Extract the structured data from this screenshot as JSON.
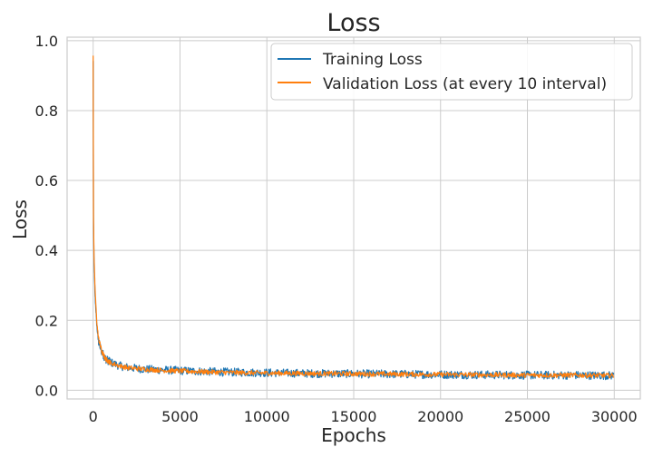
{
  "chart_data": {
    "type": "line",
    "title": "Loss",
    "xlabel": "Epochs",
    "ylabel": "Loss",
    "xlim": [
      -1500,
      31500
    ],
    "ylim": [
      -0.025,
      1.01
    ],
    "xticks": [
      0,
      5000,
      10000,
      15000,
      20000,
      25000,
      30000
    ],
    "yticks": [
      0.0,
      0.2,
      0.4,
      0.6,
      0.8,
      1.0
    ],
    "xtick_labels": [
      "0",
      "5000",
      "10000",
      "15000",
      "20000",
      "25000",
      "30000"
    ],
    "ytick_labels": [
      "0.0",
      "0.2",
      "0.4",
      "0.6",
      "0.8",
      "1.0"
    ],
    "grid": true,
    "legend_position": "top-right",
    "series": [
      {
        "name": "Training Loss",
        "color": "#1f77b4",
        "x": [
          0,
          20,
          50,
          100,
          200,
          300,
          500,
          700,
          1000,
          1500,
          2000,
          3000,
          4000,
          5000,
          7500,
          10000,
          12500,
          15000,
          17500,
          20000,
          22500,
          25000,
          27500,
          30000
        ],
        "y": [
          0.94,
          0.48,
          0.36,
          0.28,
          0.19,
          0.14,
          0.11,
          0.09,
          0.08,
          0.07,
          0.065,
          0.06,
          0.058,
          0.056,
          0.052,
          0.05,
          0.048,
          0.047,
          0.046,
          0.045,
          0.044,
          0.043,
          0.043,
          0.042
        ],
        "noise": 0.012
      },
      {
        "name": "Validation Loss (at every 10 interval)",
        "color": "#ff7f0e",
        "x": [
          0,
          20,
          50,
          100,
          200,
          300,
          500,
          700,
          1000,
          1500,
          2000,
          3000,
          4000,
          5000,
          7500,
          10000,
          12500,
          15000,
          17500,
          20000,
          22500,
          25000,
          27500,
          30000
        ],
        "y": [
          0.96,
          0.5,
          0.38,
          0.3,
          0.2,
          0.15,
          0.11,
          0.09,
          0.078,
          0.07,
          0.064,
          0.06,
          0.057,
          0.055,
          0.051,
          0.049,
          0.048,
          0.047,
          0.046,
          0.045,
          0.044,
          0.043,
          0.043,
          0.042
        ],
        "noise": 0.007
      }
    ]
  },
  "colors": {
    "grid": "#cccccc",
    "frame": "#cccccc",
    "text": "#262626"
  }
}
